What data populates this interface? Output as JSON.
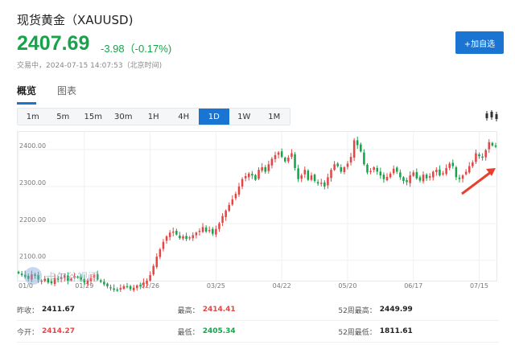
{
  "header": {
    "title": "现货黄金（XAUUSD)",
    "price": "2407.69",
    "change": "-3.98（-0.17%)",
    "status": "交易中，2024-07-15 14:07:53（北京时间)",
    "add_button": "+加自选"
  },
  "tabs": [
    {
      "label": "概览",
      "active": true
    },
    {
      "label": "图表",
      "active": false
    }
  ],
  "periods": [
    {
      "label": "1m",
      "active": false
    },
    {
      "label": "5m",
      "active": false
    },
    {
      "label": "15m",
      "active": false
    },
    {
      "label": "30m",
      "active": false
    },
    {
      "label": "1H",
      "active": false
    },
    {
      "label": "4H",
      "active": false
    },
    {
      "label": "1D",
      "active": true
    },
    {
      "label": "1W",
      "active": false
    },
    {
      "label": "1M",
      "active": false
    }
  ],
  "icons": {
    "chart_type": "candlestick-icon",
    "watermark": "watermark-logo-icon"
  },
  "watermark_text": "卡尔谷视闻",
  "colors": {
    "up": "#e44545",
    "down": "#17a34a",
    "accent": "#1a74d2",
    "annotation_arrow": "#e8402f"
  },
  "chart_data": {
    "type": "candlestick",
    "y_ticks": [
      "2400.00",
      "2300.00",
      "2200.00",
      "2100.00"
    ],
    "y_tick_values": [
      2400,
      2300,
      2200,
      2100
    ],
    "ylim": [
      2045,
      2450
    ],
    "x_ticks": [
      "01/0",
      "01/29",
      "02/26",
      "03/25",
      "04/22",
      "05/20",
      "06/17",
      "07/15"
    ],
    "x_tick_indices": [
      0,
      20,
      40,
      60,
      80,
      100,
      120,
      140
    ],
    "grid": true,
    "closes": [
      2065,
      2060,
      2055,
      2050,
      2062,
      2058,
      2048,
      2045,
      2050,
      2040,
      2038,
      2052,
      2047,
      2055,
      2060,
      2045,
      2050,
      2058,
      2055,
      2048,
      2040,
      2045,
      2052,
      2060,
      2048,
      2042,
      2035,
      2030,
      2025,
      2020,
      2018,
      2025,
      2030,
      2028,
      2022,
      2026,
      2032,
      2030,
      2040,
      2045,
      2060,
      2085,
      2110,
      2130,
      2150,
      2165,
      2175,
      2178,
      2170,
      2160,
      2165,
      2158,
      2162,
      2168,
      2175,
      2180,
      2190,
      2178,
      2182,
      2172,
      2185,
      2200,
      2220,
      2235,
      2250,
      2265,
      2280,
      2300,
      2320,
      2328,
      2335,
      2330,
      2318,
      2345,
      2352,
      2340,
      2360,
      2375,
      2385,
      2392,
      2380,
      2368,
      2378,
      2390,
      2350,
      2320,
      2330,
      2345,
      2318,
      2330,
      2315,
      2308,
      2310,
      2300,
      2325,
      2345,
      2360,
      2355,
      2340,
      2352,
      2362,
      2380,
      2425,
      2412,
      2395,
      2360,
      2338,
      2342,
      2352,
      2340,
      2330,
      2320,
      2326,
      2335,
      2348,
      2340,
      2325,
      2315,
      2312,
      2330,
      2338,
      2322,
      2316,
      2332,
      2322,
      2328,
      2340,
      2345,
      2330,
      2336,
      2350,
      2362,
      2355,
      2325,
      2320,
      2330,
      2340,
      2355,
      2365,
      2390,
      2382,
      2378,
      2398,
      2420,
      2411,
      2407.69
    ],
    "annotations": [
      {
        "type": "arrow",
        "color": "#e8402f",
        "from_index": 131,
        "to_index": 145
      }
    ]
  },
  "stats": [
    [
      {
        "label": "昨收：",
        "value": "2411.67",
        "tone": "neutral"
      },
      {
        "label": "最高：",
        "value": "2414.41",
        "tone": "red"
      },
      {
        "label": "52周最高：",
        "value": "2449.99",
        "tone": "neutral"
      }
    ],
    [
      {
        "label": "今开：",
        "value": "2414.27",
        "tone": "red"
      },
      {
        "label": "最低：",
        "value": "2405.34",
        "tone": "green"
      },
      {
        "label": "52周最低：",
        "value": "1811.61",
        "tone": "neutral"
      }
    ]
  ]
}
